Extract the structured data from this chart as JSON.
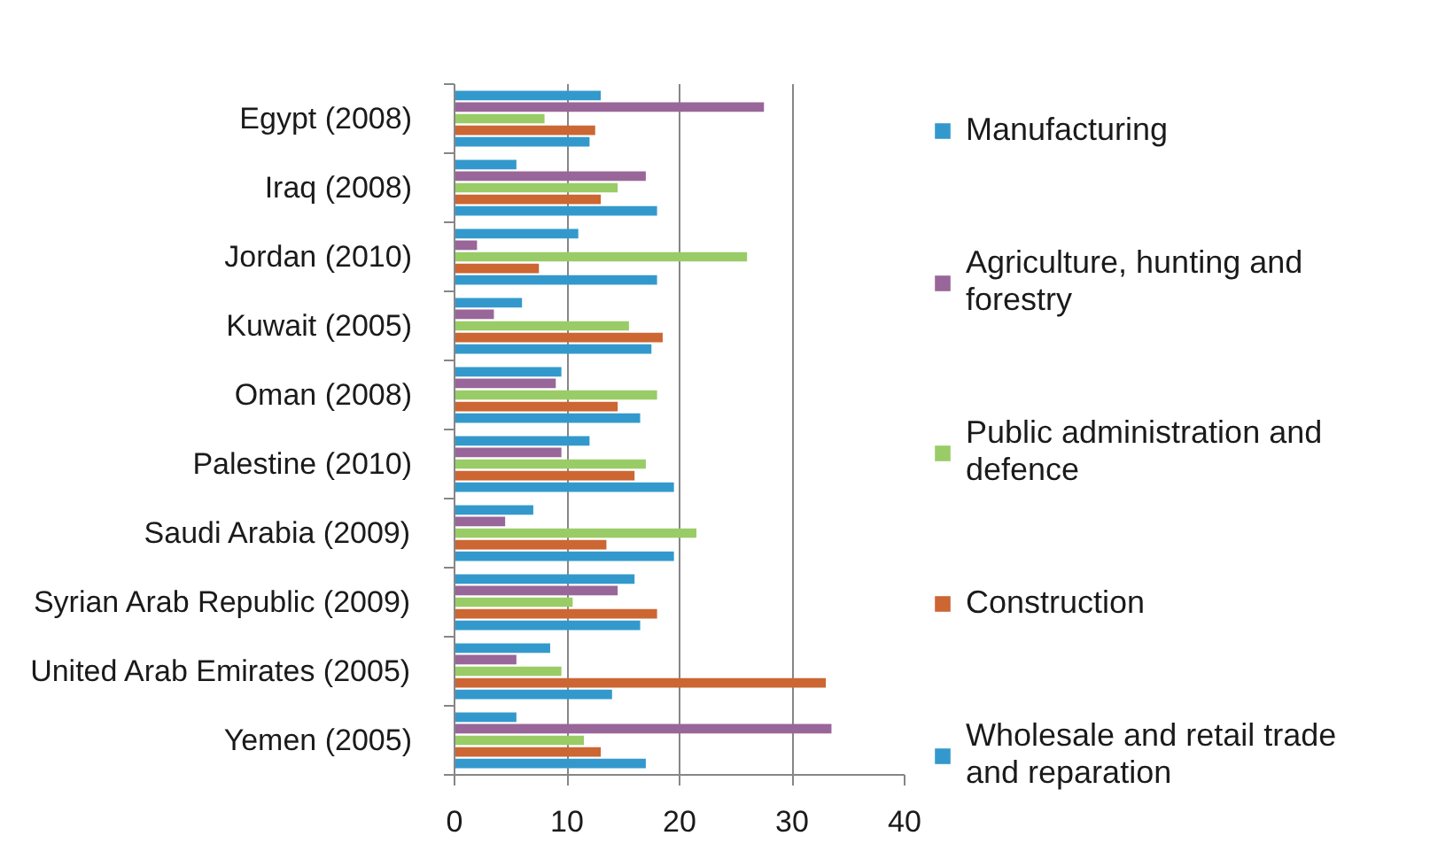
{
  "chart_data": {
    "type": "bar",
    "orientation": "horizontal",
    "categories": [
      "Egypt (2008)",
      "Iraq (2008)",
      "Jordan (2010)",
      "Kuwait (2005)",
      "Oman (2008)",
      "Palestine (2010)",
      "Saudi Arabia (2009)",
      "Syrian Arab Republic (2009)",
      "United Arab Emirates (2005)",
      "Yemen (2005)"
    ],
    "series": [
      {
        "name": "Manufacturing",
        "color": "#3399cc",
        "values": [
          13,
          5.5,
          11,
          6,
          9.5,
          12,
          7,
          16,
          8.5,
          5.5
        ]
      },
      {
        "name": "Agriculture, hunting and forestry",
        "color": "#996699",
        "values": [
          27.5,
          17,
          2,
          3.5,
          9,
          9.5,
          4.5,
          14.5,
          5.5,
          33.5
        ]
      },
      {
        "name": "Public administration and defence",
        "color": "#99cc66",
        "values": [
          8,
          14.5,
          26,
          15.5,
          18,
          17,
          21.5,
          10.5,
          9.5,
          11.5
        ]
      },
      {
        "name": "Construction",
        "color": "#cc6633",
        "values": [
          12.5,
          13,
          7.5,
          18.5,
          14.5,
          16,
          13.5,
          18,
          33,
          13
        ]
      },
      {
        "name": "Wholesale and retail trade and reparation",
        "color": "#3399cc",
        "values": [
          12,
          18,
          18,
          17.5,
          16.5,
          19.5,
          19.5,
          16.5,
          14,
          17
        ]
      }
    ],
    "xlim": [
      0,
      40
    ],
    "xticks": [
      0,
      10,
      20,
      30,
      40
    ],
    "grid": "x",
    "legend": "right"
  }
}
